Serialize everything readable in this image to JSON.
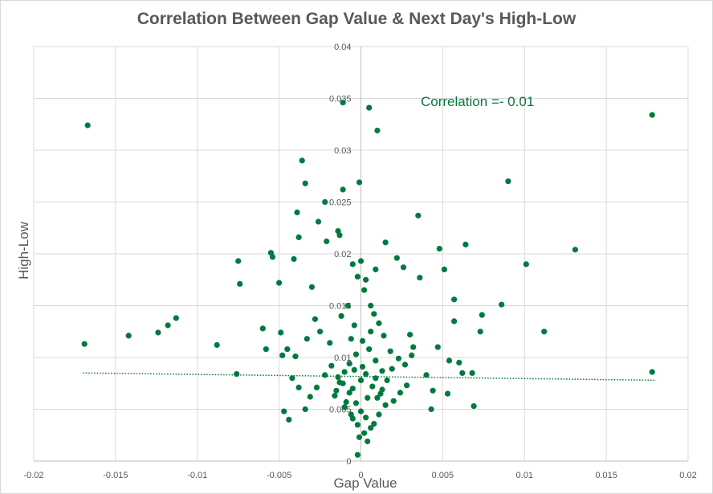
{
  "chart_data": {
    "type": "scatter",
    "title": "Correlation Between Gap Value & Next Day's High-Low",
    "xlabel": "Gap Value",
    "ylabel": "High-Low",
    "annotation": "Correlation =- 0.01",
    "xlim": [
      -0.02,
      0.02
    ],
    "ylim": [
      0,
      0.04
    ],
    "x_tick_labels": [
      "-0.02",
      "-0.015",
      "-0.01",
      "-0.005",
      "0",
      "0.005",
      "0.01",
      "0.015",
      "0.02"
    ],
    "y_tick_labels": [
      "0",
      "0.005",
      "0.01",
      "0.015",
      "0.02",
      "0.025",
      "0.03",
      "0.035",
      "0.04"
    ],
    "grid": true,
    "legend": "none",
    "marker_color": "#007a3d",
    "trendline": {
      "style": "dotted",
      "color": "#007a3d",
      "x": [
        -0.017,
        0.018
      ],
      "y": [
        0.0085,
        0.0078
      ]
    },
    "points": [
      [
        -0.0167,
        0.0324
      ],
      [
        0.0178,
        0.0334
      ],
      [
        -0.0169,
        0.0113
      ],
      [
        0.0178,
        0.0086
      ],
      [
        -0.0142,
        0.0121
      ],
      [
        -0.0124,
        0.0124
      ],
      [
        -0.0118,
        0.0131
      ],
      [
        -0.0113,
        0.0138
      ],
      [
        -0.0088,
        0.0112
      ],
      [
        -0.0076,
        0.0084
      ],
      [
        -0.0075,
        0.0193
      ],
      [
        -0.0074,
        0.0171
      ],
      [
        -0.006,
        0.0128
      ],
      [
        -0.0058,
        0.0108
      ],
      [
        -0.0055,
        0.0201
      ],
      [
        -0.0054,
        0.0197
      ],
      [
        -0.005,
        0.0172
      ],
      [
        -0.0049,
        0.0124
      ],
      [
        -0.0048,
        0.0102
      ],
      [
        -0.0047,
        0.0048
      ],
      [
        -0.0041,
        0.0195
      ],
      [
        -0.0039,
        0.024
      ],
      [
        -0.0038,
        0.0216
      ],
      [
        -0.0036,
        0.029
      ],
      [
        -0.0034,
        0.0268
      ],
      [
        -0.003,
        0.0168
      ],
      [
        -0.0026,
        0.0231
      ],
      [
        -0.0022,
        0.025
      ],
      [
        -0.0021,
        0.0212
      ],
      [
        -0.0014,
        0.0222
      ],
      [
        -0.0013,
        0.0218
      ],
      [
        -0.0011,
        0.0262
      ],
      [
        -0.0011,
        0.0346
      ],
      [
        -0.0001,
        0.0269
      ],
      [
        0.0005,
        0.0341
      ],
      [
        0.001,
        0.0319
      ],
      [
        0.0015,
        0.0211
      ],
      [
        0.0022,
        0.0196
      ],
      [
        0.0026,
        0.0187
      ],
      [
        0.0035,
        0.0237
      ],
      [
        0.0036,
        0.0177
      ],
      [
        0.0048,
        0.0205
      ],
      [
        0.0051,
        0.0185
      ],
      [
        0.0057,
        0.0156
      ],
      [
        0.0064,
        0.0209
      ],
      [
        0.009,
        0.027
      ],
      [
        0.0101,
        0.019
      ],
      [
        0.0131,
        0.0204
      ],
      [
        0.0112,
        0.0125
      ],
      [
        0.0086,
        0.0151
      ],
      [
        0.0074,
        0.0141
      ],
      [
        0.0073,
        0.0125
      ],
      [
        0.0057,
        0.0135
      ],
      [
        0.0047,
        0.011
      ],
      [
        0.0032,
        0.011
      ],
      [
        0.0031,
        0.0102
      ],
      [
        0.003,
        0.0122
      ],
      [
        0.0054,
        0.0097
      ],
      [
        0.006,
        0.0095
      ],
      [
        0.0062,
        0.0085
      ],
      [
        0.0068,
        0.0085
      ],
      [
        0.0069,
        0.0053
      ],
      [
        0.0053,
        0.0065
      ],
      [
        0.0043,
        0.005
      ],
      [
        0.0044,
        0.0068
      ],
      [
        0.002,
        0.0058
      ],
      [
        0.0019,
        0.0089
      ],
      [
        0.0016,
        0.0078
      ],
      [
        0.001,
        0.0061
      ],
      [
        0.0008,
        0.0036
      ],
      [
        0.0004,
        0.0019
      ],
      [
        -0.0002,
        0.0006
      ],
      [
        -0.0006,
        0.0045
      ],
      [
        -0.001,
        0.0052
      ],
      [
        -0.0015,
        0.0068
      ],
      [
        -0.0018,
        0.0092
      ],
      [
        -0.0022,
        0.0083
      ],
      [
        -0.0027,
        0.0071
      ],
      [
        -0.0031,
        0.0062
      ],
      [
        -0.0034,
        0.005
      ],
      [
        -0.0038,
        0.0071
      ],
      [
        -0.004,
        0.0101
      ],
      [
        -0.0042,
        0.008
      ],
      [
        -0.0045,
        0.0108
      ],
      [
        -0.0033,
        0.0118
      ],
      [
        -0.0025,
        0.0125
      ],
      [
        -0.0019,
        0.0114
      ],
      [
        -0.0012,
        0.014
      ],
      [
        -0.0008,
        0.015
      ],
      [
        -0.0004,
        0.0131
      ],
      [
        0.0002,
        0.0165
      ],
      [
        0.0006,
        0.015
      ],
      [
        0.0011,
        0.0133
      ],
      [
        0.0014,
        0.0121
      ],
      [
        0.0018,
        0.0106
      ],
      [
        0.0023,
        0.0099
      ],
      [
        0.0027,
        0.0093
      ],
      [
        0.0028,
        0.0073
      ],
      [
        0.0024,
        0.0066
      ],
      [
        0.0013,
        0.0087
      ],
      [
        0.0009,
        0.0097
      ],
      [
        0.0005,
        0.0108
      ],
      [
        0.0001,
        0.0116
      ],
      [
        -0.0003,
        0.0103
      ],
      [
        -0.0007,
        0.0094
      ],
      [
        -0.001,
        0.0086
      ],
      [
        -0.0013,
        0.0076
      ],
      [
        -0.0016,
        0.0063
      ],
      [
        -0.0009,
        0.0057
      ],
      [
        -0.0005,
        0.007
      ],
      [
        0.0,
        0.0078
      ],
      [
        0.0003,
        0.0084
      ],
      [
        0.0007,
        0.0072
      ],
      [
        0.0012,
        0.0065
      ],
      [
        0.0015,
        0.0054
      ],
      [
        0.0011,
        0.0045
      ],
      [
        0.0006,
        0.0032
      ],
      [
        0.0002,
        0.0027
      ],
      [
        -0.0002,
        0.0035
      ],
      [
        -0.0005,
        0.0041
      ],
      [
        -0.0003,
        0.0056
      ],
      [
        0.0004,
        0.0061
      ],
      [
        0.0,
        0.0048
      ],
      [
        -0.0007,
        0.0066
      ],
      [
        -0.0011,
        0.0075
      ],
      [
        -0.0014,
        0.0081
      ],
      [
        0.0009,
        0.008
      ],
      [
        0.0013,
        0.0069
      ],
      [
        0.0003,
        0.0042
      ],
      [
        -0.0001,
        0.0023
      ],
      [
        0.0001,
        0.0091
      ],
      [
        -0.0004,
        0.0088
      ],
      [
        0.0006,
        0.0125
      ],
      [
        -0.0006,
        0.0118
      ],
      [
        0.0008,
        0.0142
      ],
      [
        -0.0002,
        0.0178
      ],
      [
        0.0003,
        0.0175
      ],
      [
        -0.0005,
        0.019
      ],
      [
        0.0,
        0.0193
      ],
      [
        0.0009,
        0.0185
      ],
      [
        -0.0028,
        0.0137
      ],
      [
        0.004,
        0.0083
      ],
      [
        -0.0044,
        0.004
      ]
    ]
  }
}
